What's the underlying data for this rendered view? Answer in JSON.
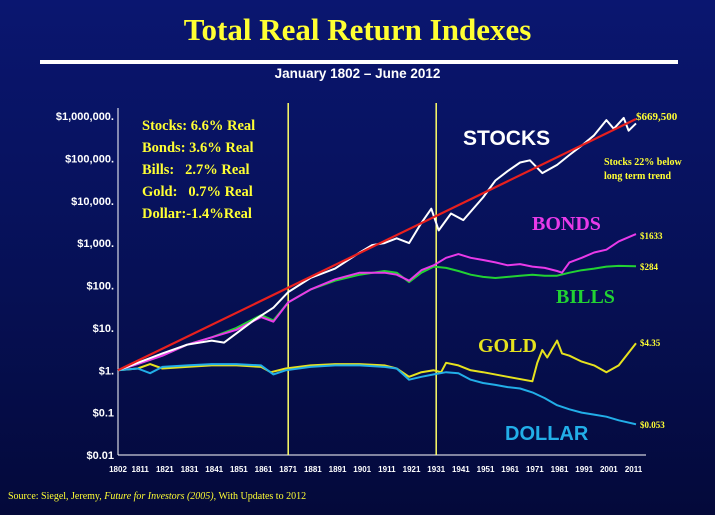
{
  "title": "Total Real Return Indexes",
  "subtitle": "January 1802 – June 2012",
  "source": {
    "prefix": "Source: Siegel, Jeremy, ",
    "book": "Future for Investors (2005)",
    "suffix": ", With Updates to 2012"
  },
  "colors": {
    "background": "#061055",
    "title": "#ffff33",
    "stocks": "#ffffff",
    "trend": "#e8201e",
    "bonds": "#e93ae9",
    "bills": "#22d233",
    "gold": "#e6e21e",
    "dollar": "#22aee8",
    "vline": "#ffff66"
  },
  "chart_data": {
    "type": "line",
    "yscale": "log",
    "ylim": [
      0.01,
      1000000
    ],
    "xlim": [
      1802,
      2012
    ],
    "y_tick_values": [
      0.01,
      0.1,
      1,
      10,
      100,
      1000,
      10000,
      100000,
      1000000
    ],
    "y_tick_labels": [
      "$0.01",
      "$0.1",
      "$1.",
      "$10.",
      "$100.",
      "$1,000.",
      "$10,000.",
      "$100,000.",
      "$1,000,000."
    ],
    "x_tick_labels": [
      "1802",
      "1811",
      "1821",
      "1831",
      "1841",
      "1851",
      "1861",
      "1871",
      "1881",
      "1891",
      "1901",
      "1911",
      "1921",
      "1931",
      "1941",
      "1951",
      "1961",
      "1971",
      "1981",
      "1991",
      "2001",
      "2011"
    ],
    "vertical_lines": [
      1871,
      1931
    ],
    "returns_box": [
      "Stocks: 6.6% Real",
      "Bonds: 3.6% Real",
      "Bills:   2.7% Real",
      "Gold:   0.7% Real",
      "Dollar:-1.4%Real"
    ],
    "trend_note": [
      "Stocks 22% below",
      "long term trend"
    ],
    "trend": {
      "x": [
        1802,
        2012
      ],
      "y": [
        1,
        850000
      ]
    },
    "series": [
      {
        "name": "STOCKS",
        "key": "stocks",
        "end_label": "$669,500",
        "x": [
          1802,
          1810,
          1820,
          1830,
          1840,
          1845,
          1857,
          1865,
          1871,
          1880,
          1890,
          1900,
          1905,
          1910,
          1915,
          1920,
          1925,
          1929,
          1932,
          1937,
          1942,
          1950,
          1955,
          1960,
          1965,
          1969,
          1974,
          1980,
          1985,
          1990,
          1995,
          2000,
          2003,
          2007,
          2009,
          2012
        ],
        "y": [
          1,
          1.5,
          2.5,
          4,
          5,
          4.5,
          15,
          30,
          70,
          150,
          250,
          600,
          900,
          1000,
          1300,
          1000,
          3000,
          6500,
          2000,
          5000,
          3500,
          12000,
          30000,
          50000,
          80000,
          90000,
          45000,
          70000,
          120000,
          200000,
          350000,
          800000,
          500000,
          900000,
          450000,
          669500
        ]
      },
      {
        "name": "BONDS",
        "key": "bonds",
        "end_label": "$1633",
        "x": [
          1802,
          1810,
          1820,
          1830,
          1840,
          1850,
          1860,
          1865,
          1871,
          1880,
          1890,
          1900,
          1910,
          1915,
          1920,
          1925,
          1930,
          1935,
          1940,
          1945,
          1950,
          1955,
          1960,
          1965,
          1970,
          1975,
          1980,
          1982,
          1985,
          1990,
          1995,
          2000,
          2005,
          2012
        ],
        "y": [
          1,
          1.4,
          2.2,
          4,
          6,
          9,
          18,
          14,
          40,
          80,
          140,
          200,
          200,
          180,
          130,
          230,
          300,
          450,
          550,
          450,
          400,
          350,
          300,
          320,
          280,
          260,
          220,
          200,
          350,
          450,
          600,
          700,
          1100,
          1633
        ]
      },
      {
        "name": "BILLS",
        "key": "bills",
        "end_label": "$284",
        "x": [
          1802,
          1810,
          1820,
          1830,
          1840,
          1850,
          1860,
          1865,
          1871,
          1880,
          1890,
          1900,
          1910,
          1915,
          1920,
          1925,
          1930,
          1935,
          1940,
          1945,
          1950,
          1955,
          1960,
          1965,
          1970,
          1975,
          1980,
          1985,
          1990,
          1995,
          2000,
          2005,
          2012
        ],
        "y": [
          1,
          1.4,
          2.2,
          4,
          6,
          10,
          20,
          15,
          40,
          80,
          130,
          180,
          220,
          200,
          120,
          200,
          280,
          260,
          220,
          180,
          160,
          150,
          160,
          170,
          180,
          170,
          170,
          200,
          230,
          250,
          280,
          290,
          284
        ]
      },
      {
        "name": "GOLD",
        "key": "gold",
        "end_label": "$4.35",
        "x": [
          1802,
          1810,
          1815,
          1820,
          1830,
          1840,
          1850,
          1860,
          1864,
          1870,
          1880,
          1890,
          1900,
          1910,
          1915,
          1920,
          1925,
          1930,
          1933,
          1935,
          1940,
          1945,
          1950,
          1960,
          1970,
          1972,
          1974,
          1976,
          1980,
          1982,
          1985,
          1990,
          1995,
          2000,
          2005,
          2012
        ],
        "y": [
          1,
          1.1,
          1.4,
          1.1,
          1.2,
          1.3,
          1.3,
          1.2,
          0.9,
          1.1,
          1.3,
          1.4,
          1.4,
          1.3,
          1.1,
          0.7,
          0.9,
          1.0,
          0.9,
          1.5,
          1.3,
          1.0,
          0.9,
          0.7,
          0.55,
          1.5,
          3,
          2,
          5,
          2.5,
          2.2,
          1.6,
          1.3,
          0.9,
          1.3,
          4.35
        ]
      },
      {
        "name": "DOLLAR",
        "key": "dollar",
        "end_label": "$0.053",
        "x": [
          1802,
          1810,
          1815,
          1820,
          1830,
          1840,
          1850,
          1860,
          1865,
          1870,
          1880,
          1890,
          1900,
          1910,
          1915,
          1920,
          1925,
          1930,
          1935,
          1940,
          1945,
          1950,
          1955,
          1960,
          1965,
          1970,
          1975,
          1980,
          1985,
          1990,
          1995,
          2000,
          2005,
          2012
        ],
        "y": [
          1,
          1.1,
          0.85,
          1.2,
          1.3,
          1.4,
          1.4,
          1.3,
          0.8,
          1.0,
          1.2,
          1.3,
          1.3,
          1.2,
          1.1,
          0.6,
          0.7,
          0.8,
          0.9,
          0.85,
          0.6,
          0.5,
          0.45,
          0.4,
          0.37,
          0.3,
          0.22,
          0.15,
          0.12,
          0.1,
          0.09,
          0.08,
          0.066,
          0.053
        ]
      }
    ]
  }
}
